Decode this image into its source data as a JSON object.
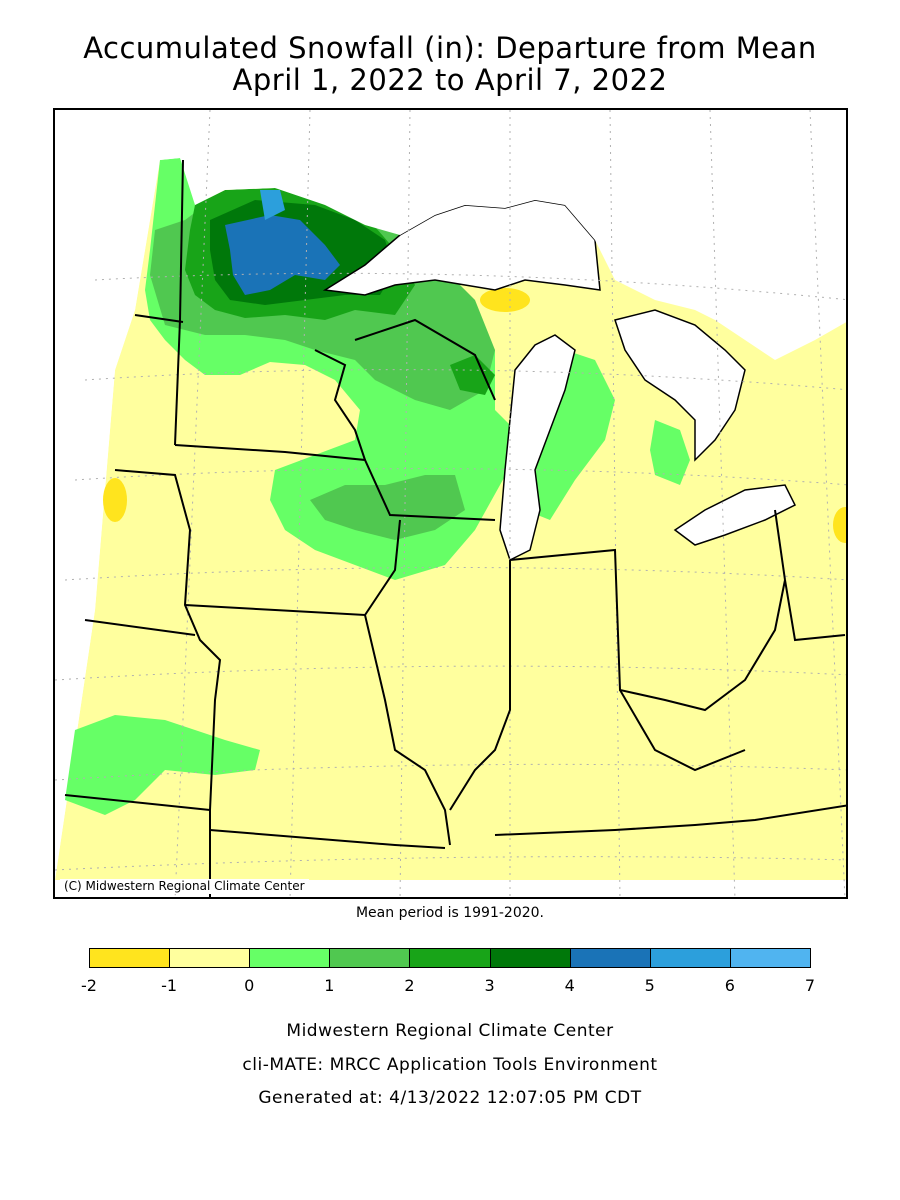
{
  "title": {
    "line1": "Accumulated Snowfall (in): Departure from Mean",
    "line2": "April 1, 2022 to April 7, 2022"
  },
  "map": {
    "copyright": "(C) Midwestern Regional Climate Center",
    "colors": {
      "water": "#ffffff",
      "outside": "#ffffff",
      "state_border": "#000000",
      "graticule": "#b0b0b0"
    }
  },
  "mean_note": "Mean period is 1991-2020.",
  "legend": {
    "bins": [
      {
        "from": -2,
        "to": -1,
        "color": "#ffe41e"
      },
      {
        "from": -1,
        "to": 0,
        "color": "#ffff9e"
      },
      {
        "from": 0,
        "to": 1,
        "color": "#66ff66"
      },
      {
        "from": 1,
        "to": 2,
        "color": "#50c850"
      },
      {
        "from": 2,
        "to": 3,
        "color": "#18a418"
      },
      {
        "from": 3,
        "to": 4,
        "color": "#00780a"
      },
      {
        "from": 4,
        "to": 5,
        "color": "#1a73b7"
      },
      {
        "from": 5,
        "to": 6,
        "color": "#2c9fdc"
      },
      {
        "from": 6,
        "to": 7,
        "color": "#50b4f0"
      }
    ],
    "tick_labels": [
      "-2",
      "-1",
      "0",
      "1",
      "2",
      "3",
      "4",
      "5",
      "6",
      "7"
    ]
  },
  "footer": {
    "line1": "Midwestern Regional Climate Center",
    "line2": "cli-MATE: MRCC Application Tools Environment",
    "line3": "Generated at: 4/13/2022 12:07:05 PM CDT"
  }
}
